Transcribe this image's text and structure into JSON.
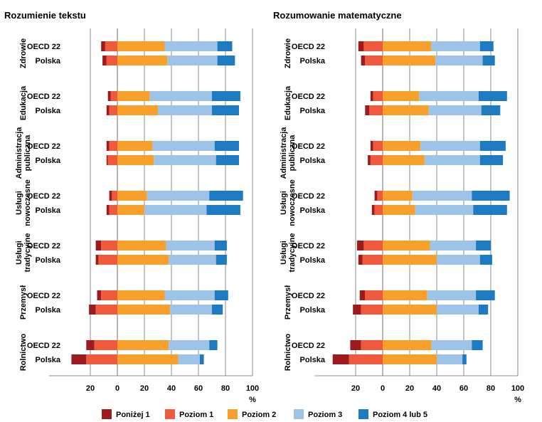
{
  "chart_data": {
    "type": "bar",
    "stacked": "diverging",
    "panels": [
      {
        "title": "Rozumienie tekstu",
        "groups": [
          {
            "name": [
              "Zdrowie"
            ],
            "rows": [
              {
                "label": "OECD 22",
                "values": [
                  3,
                  9,
                  35,
                  39,
                  11
                ]
              },
              {
                "label": "Polska",
                "values": [
                  3,
                  8,
                  37,
                  37,
                  13
                ]
              }
            ]
          },
          {
            "name": [
              "Edukacja"
            ],
            "rows": [
              {
                "label": "OECD 22",
                "values": [
                  2,
                  5,
                  24,
                  46,
                  21
                ]
              },
              {
                "label": "Polska",
                "values": [
                  2,
                  6,
                  30,
                  40,
                  20
                ]
              }
            ]
          },
          {
            "name": [
              "Administracja",
              "publiczna"
            ],
            "rows": [
              {
                "label": "OECD 22",
                "values": [
                  2,
                  6,
                  26,
                  46,
                  18
                ]
              },
              {
                "label": "Polska",
                "values": [
                  1,
                  7,
                  27,
                  46,
                  17
                ]
              }
            ]
          },
          {
            "name": [
              "Usługi",
              "nowoczesne"
            ],
            "rows": [
              {
                "label": "OECD 22",
                "values": [
                  2,
                  4,
                  22,
                  46,
                  25
                ]
              },
              {
                "label": "Polska",
                "values": [
                  2,
                  6,
                  20,
                  46,
                  25
                ]
              }
            ]
          },
          {
            "name": [
              "Usługi",
              "tradycyjne"
            ],
            "rows": [
              {
                "label": "OECD 22",
                "values": [
                  4,
                  12,
                  36,
                  36,
                  9
                ]
              },
              {
                "label": "Polska",
                "values": [
                  2,
                  14,
                  38,
                  35,
                  8
                ]
              }
            ]
          },
          {
            "name": [
              "Przemysł"
            ],
            "rows": [
              {
                "label": "OECD 22",
                "values": [
                  3,
                  12,
                  35,
                  37,
                  10
                ]
              },
              {
                "label": "Polska",
                "values": [
                  5,
                  16,
                  39,
                  31,
                  8
                ]
              }
            ]
          },
          {
            "name": [
              "Rolnictwo"
            ],
            "rows": [
              {
                "label": "OECD 22",
                "values": [
                  6,
                  17,
                  38,
                  30,
                  6
                ]
              },
              {
                "label": "Polska",
                "values": [
                  11,
                  23,
                  45,
                  16,
                  3
                ]
              }
            ]
          }
        ]
      },
      {
        "title": "Rozumowanie matematyczne",
        "groups": [
          {
            "name": [
              "Zdrowie"
            ],
            "rows": [
              {
                "label": "OECD 22",
                "values": [
                  4,
                  14,
                  36,
                  36,
                  10
                ]
              },
              {
                "label": "Polska",
                "values": [
                  3,
                  13,
                  39,
                  35,
                  9
                ]
              }
            ]
          },
          {
            "name": [
              "Edukacja"
            ],
            "rows": [
              {
                "label": "OECD 22",
                "values": [
                  2,
                  7,
                  27,
                  44,
                  21
                ]
              },
              {
                "label": "Polska",
                "values": [
                  3,
                  10,
                  34,
                  39,
                  14
                ]
              }
            ]
          },
          {
            "name": [
              "Administracja",
              "publiczna"
            ],
            "rows": [
              {
                "label": "OECD 22",
                "values": [
                  2,
                  7,
                  28,
                  44,
                  19
                ]
              },
              {
                "label": "Polska",
                "values": [
                  2,
                  9,
                  31,
                  41,
                  17
                ]
              }
            ]
          },
          {
            "name": [
              "Usługi",
              "nowoczesne"
            ],
            "rows": [
              {
                "label": "OECD 22",
                "values": [
                  2,
                  4,
                  22,
                  44,
                  28
                ]
              },
              {
                "label": "Polska",
                "values": [
                  2,
                  6,
                  24,
                  43,
                  25
                ]
              }
            ]
          },
          {
            "name": [
              "Usługi",
              "tradycyjne"
            ],
            "rows": [
              {
                "label": "OECD 22",
                "values": [
                  5,
                  14,
                  35,
                  34,
                  11
                ]
              },
              {
                "label": "Polska",
                "values": [
                  3,
                  15,
                  40,
                  32,
                  9
                ]
              }
            ]
          },
          {
            "name": [
              "Przemysł"
            ],
            "rows": [
              {
                "label": "OECD 22",
                "values": [
                  4,
                  13,
                  33,
                  36,
                  14
                ]
              },
              {
                "label": "Polska",
                "values": [
                  6,
                  16,
                  40,
                  31,
                  7
                ]
              }
            ]
          },
          {
            "name": [
              "Rolnictwo"
            ],
            "rows": [
              {
                "label": "OECD 22",
                "values": [
                  8,
                  16,
                  36,
                  30,
                  8
                ]
              },
              {
                "label": "Polska",
                "values": [
                  12,
                  25,
                  40,
                  19,
                  3
                ]
              }
            ]
          }
        ]
      }
    ],
    "levels": [
      "Poniżej 1",
      "Poziom 1",
      "Poziom 2",
      "Poziom 3",
      "Poziom 4 lub 5"
    ],
    "colors": [
      "#9b1b1f",
      "#ef5a3c",
      "#f7a12c",
      "#9dc3e6",
      "#1f7bc1"
    ],
    "negative_levels": 2,
    "xlim": [
      -40,
      100
    ],
    "xticks": [
      -20,
      0,
      20,
      40,
      60,
      80,
      100
    ],
    "xtick_labels": [
      "20",
      "0",
      "20",
      "40",
      "60",
      "80",
      "100"
    ],
    "xlabel": "%",
    "legend_position": "bottom"
  }
}
